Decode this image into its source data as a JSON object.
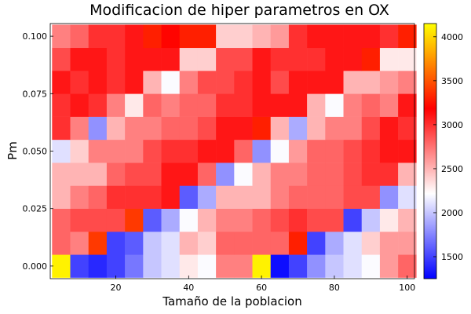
{
  "chart_data": {
    "type": "heatmap",
    "title": "Modificacion de hiper parametros en OX",
    "xlabel": "Tamaño de la poblacion",
    "ylabel": "Pm",
    "xlim": [
      2,
      102
    ],
    "ylim": [
      -0.0055,
      0.1055
    ],
    "x_ticks": [
      20,
      40,
      60,
      80,
      100
    ],
    "x_tick_labels": [
      "20",
      "40",
      "60",
      "80",
      "100"
    ],
    "y_ticks": [
      0.0,
      0.025,
      0.05,
      0.075,
      0.1
    ],
    "y_tick_labels": [
      "0.000",
      "0.025",
      "0.050",
      "0.075",
      "0.100"
    ],
    "x": [
      5,
      10,
      15,
      20,
      25,
      30,
      35,
      40,
      45,
      50,
      55,
      60,
      65,
      70,
      75,
      80,
      85,
      90,
      95,
      100
    ],
    "y": [
      0.0,
      0.01,
      0.02,
      0.03,
      0.04,
      0.05,
      0.06,
      0.07,
      0.08,
      0.09,
      0.1
    ],
    "z": [
      [
        4100,
        1500,
        1400,
        1500,
        1700,
        2000,
        2100,
        2300,
        2200,
        2700,
        2700,
        4100,
        1300,
        1500,
        1800,
        2000,
        2100,
        2200,
        2600,
        2800
      ],
      [
        2800,
        2700,
        3400,
        1500,
        1600,
        2000,
        2100,
        2500,
        2400,
        2800,
        2800,
        2800,
        2800,
        3300,
        1500,
        1900,
        2100,
        2400,
        2600,
        2600
      ],
      [
        2800,
        2900,
        2900,
        2900,
        3400,
        1600,
        1900,
        2200,
        2500,
        2700,
        2700,
        2800,
        2900,
        3000,
        2900,
        2900,
        1500,
        2000,
        2300,
        2500
      ],
      [
        2500,
        2700,
        2800,
        3000,
        3000,
        3000,
        3100,
        1600,
        1900,
        2500,
        2500,
        2500,
        2700,
        2800,
        2800,
        2800,
        2900,
        2900,
        1800,
        2100
      ],
      [
        2500,
        2500,
        2500,
        2800,
        2900,
        2900,
        3100,
        3100,
        2800,
        1800,
        2200,
        2500,
        2700,
        2700,
        2800,
        2800,
        2900,
        3000,
        3000,
        2500
      ],
      [
        2100,
        2400,
        2700,
        2700,
        2700,
        2900,
        3000,
        3000,
        3100,
        3100,
        2800,
        1800,
        2200,
        2600,
        2800,
        2800,
        2900,
        3000,
        3100,
        3100
      ],
      [
        3000,
        2700,
        1800,
        2500,
        2700,
        2700,
        2800,
        2800,
        2900,
        3100,
        3100,
        3300,
        2500,
        1900,
        2500,
        2700,
        2700,
        2900,
        3100,
        3000
      ],
      [
        3000,
        3100,
        3000,
        2700,
        2300,
        2800,
        2700,
        2800,
        2800,
        3000,
        3000,
        3100,
        3100,
        3100,
        2500,
        2200,
        2700,
        2800,
        2700,
        3100
      ],
      [
        3100,
        3000,
        3100,
        3000,
        3100,
        2500,
        2200,
        2700,
        2900,
        2900,
        3000,
        3100,
        2900,
        3100,
        3100,
        3100,
        2500,
        2500,
        2600,
        2700
      ],
      [
        2900,
        3100,
        3100,
        3000,
        3100,
        3100,
        3100,
        2400,
        2400,
        2900,
        2900,
        3100,
        3000,
        3000,
        3000,
        3100,
        3100,
        3300,
        2300,
        2300
      ],
      [
        2700,
        2800,
        3000,
        3000,
        3100,
        3300,
        3200,
        3300,
        3300,
        2400,
        2400,
        2500,
        2600,
        3000,
        3100,
        3100,
        3100,
        3100,
        3000,
        3300
      ]
    ],
    "colorbar": {
      "min": 1250,
      "max": 4150,
      "ticks": [
        1500,
        2000,
        2500,
        3000,
        3500,
        4000
      ],
      "tick_labels": [
        "1500",
        "2000",
        "2500",
        "3000",
        "3500",
        "4000"
      ],
      "colors": [
        "#0000ff",
        "#ffffff",
        "#ff0000",
        "#ffff00"
      ]
    },
    "grid": false,
    "legend": "none"
  }
}
